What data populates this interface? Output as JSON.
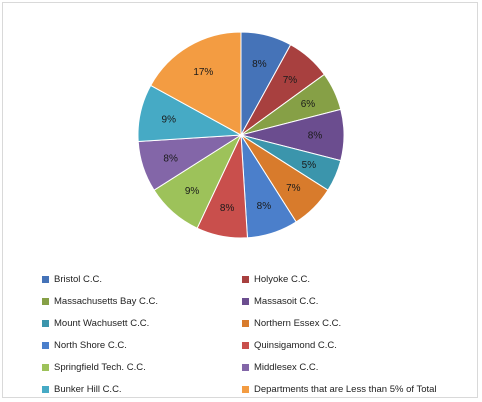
{
  "chart_data": {
    "type": "pie",
    "start_angle_deg": 0,
    "direction": "clockwise",
    "data_labels_visible": true,
    "legend_position": "bottom",
    "slices": [
      {
        "name": "Bristol C.C.",
        "value": 8,
        "label": "8%",
        "color": "#4573B8"
      },
      {
        "name": "Holyoke C.C.",
        "value": 7,
        "label": "7%",
        "color": "#A8403F"
      },
      {
        "name": "Massachusetts Bay C.C.",
        "value": 6,
        "label": "6%",
        "color": "#86A046"
      },
      {
        "name": "Massasoit C.C.",
        "value": 8,
        "label": "8%",
        "color": "#6B4D8F"
      },
      {
        "name": "Mount Wachusett C.C.",
        "value": 5,
        "label": "5%",
        "color": "#3B95AC"
      },
      {
        "name": "Northern Essex C.C.",
        "value": 7,
        "label": "7%",
        "color": "#D87B2C"
      },
      {
        "name": "North Shore C.C.",
        "value": 8,
        "label": "8%",
        "color": "#4B7FCB"
      },
      {
        "name": "Quinsigamond C.C.",
        "value": 8,
        "label": "8%",
        "color": "#C94F4C"
      },
      {
        "name": "Springfield Tech. C.C.",
        "value": 9,
        "label": "9%",
        "color": "#9DC25A"
      },
      {
        "name": "Middlesex C.C.",
        "value": 8,
        "label": "8%",
        "color": "#8366A8"
      },
      {
        "name": "Bunker Hill C.C.",
        "value": 9,
        "label": "9%",
        "color": "#46AAC5"
      },
      {
        "name": "Departments that are Less than 5% of Total",
        "value": 17,
        "label": "17%",
        "color": "#F39C42"
      }
    ]
  }
}
